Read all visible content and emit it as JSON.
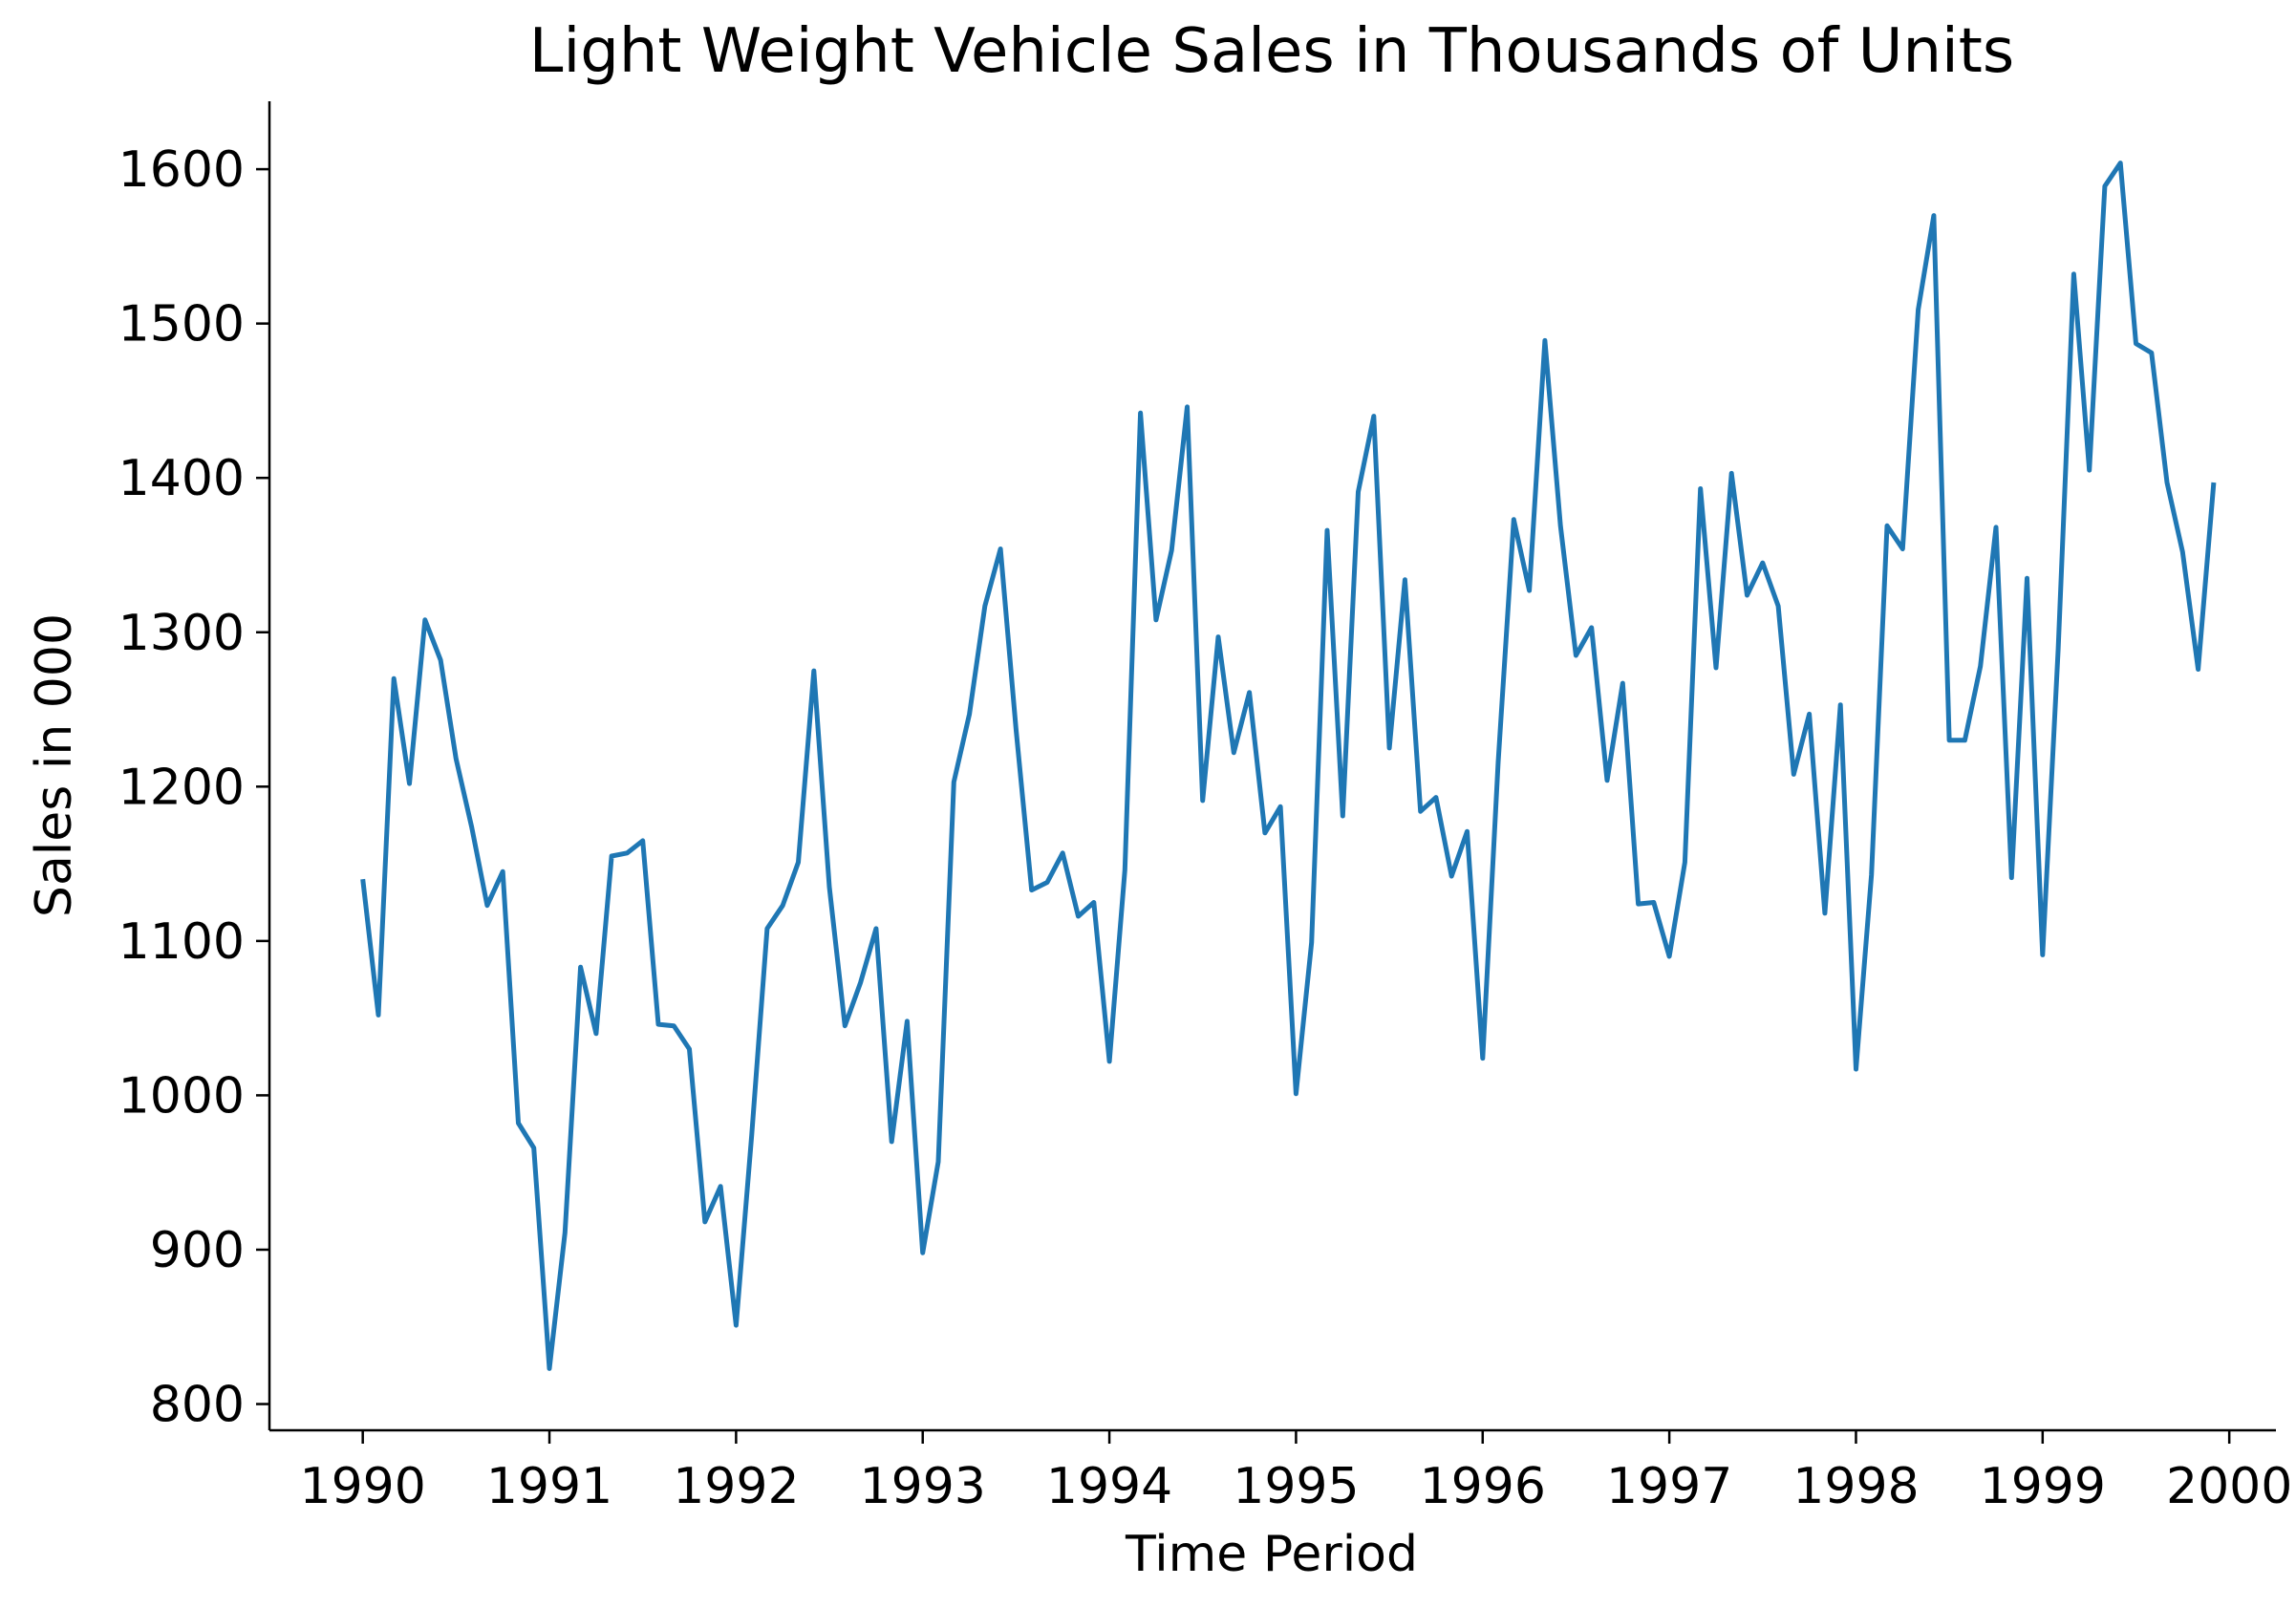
{
  "chart_data": {
    "type": "line",
    "title": "Light Weight Vehicle Sales in Thousands of Units",
    "xlabel": "Time Period",
    "ylabel": "Sales in 000",
    "xlim": [
      1989.5,
      2000.25
    ],
    "ylim": [
      783,
      1644
    ],
    "x_ticks": [
      1990,
      1991,
      1992,
      1993,
      1994,
      1995,
      1996,
      1997,
      1998,
      1999,
      2000
    ],
    "y_ticks": [
      800,
      900,
      1000,
      1100,
      1200,
      1300,
      1400,
      1500,
      1600
    ],
    "grid": false,
    "legend": "none",
    "line_color": "#1f77b4",
    "series": [
      {
        "x_start": 1990,
        "x_step": 0.08333333,
        "values": [
          1140,
          1052,
          1270,
          1202,
          1308,
          1282,
          1218,
          1174,
          1123,
          1145,
          982,
          966,
          823,
          911,
          1083,
          1040,
          1155,
          1157,
          1165,
          1046,
          1045,
          1030,
          918,
          941,
          851,
          974,
          1108,
          1123,
          1151,
          1275,
          1135,
          1045,
          1073,
          1108,
          970,
          1048,
          898,
          957,
          1203,
          1247,
          1317,
          1354,
          1237,
          1133,
          1138,
          1157,
          1116,
          1125,
          1022,
          1146,
          1442,
          1308,
          1353,
          1446,
          1191,
          1297,
          1222,
          1261,
          1170,
          1187,
          1001,
          1099,
          1366,
          1181,
          1391,
          1440,
          1225,
          1334,
          1184,
          1193,
          1142,
          1171,
          1024,
          1216,
          1373,
          1327,
          1489,
          1369,
          1285,
          1303,
          1204,
          1267,
          1124,
          1125,
          1090,
          1151,
          1393,
          1277,
          1403,
          1324,
          1345,
          1317,
          1208,
          1247,
          1118,
          1253,
          1017,
          1143,
          1369,
          1354,
          1509,
          1570,
          1230,
          1230,
          1278,
          1368,
          1141,
          1335,
          1091,
          1289,
          1532,
          1405,
          1589,
          1604,
          1487,
          1481,
          1397,
          1352,
          1276,
          1397
        ]
      }
    ]
  }
}
